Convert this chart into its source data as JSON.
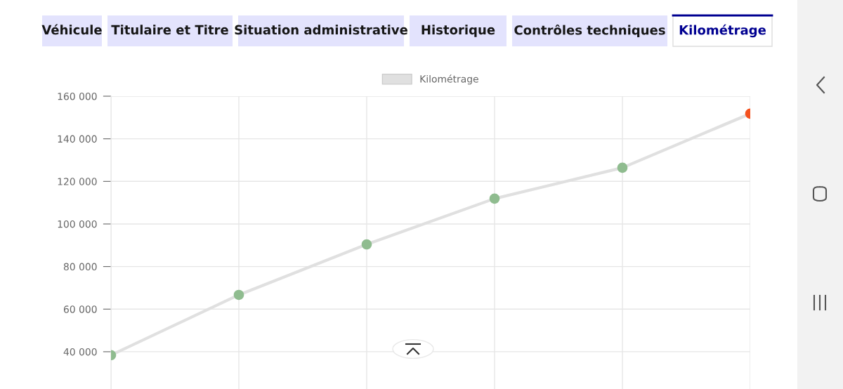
{
  "chart_data": {
    "type": "line",
    "annotations": [
      "Véhicule",
      "Titulaire et Titre",
      "Situation administrative",
      "Historique",
      "Contrôles techniques",
      "Kilométrage"
    ],
    "categories": [
      null,
      null,
      null,
      null,
      null,
      null
    ],
    "series": [
      {
        "name": "Kilométrage",
        "color": "#e0e0e0",
        "colors": [
          "#8fbc8f",
          "#8fbc8f",
          "#8fbc8f",
          "#8fbc8f",
          "#8fbc8f",
          "#f4511e"
        ],
        "values": [
          38400,
          66700,
          90400,
          111900,
          126400,
          151800
        ]
      }
    ],
    "ylim": [
      22500,
      160000
    ],
    "yticks": [
      {
        "value": 40000,
        "label": "40 000"
      },
      {
        "value": 60000,
        "label": "60 000"
      },
      {
        "value": 80000,
        "label": "80 000"
      },
      {
        "value": 100000,
        "label": "100 000"
      },
      {
        "value": 120000,
        "label": "120 000"
      },
      {
        "value": 140000,
        "label": "140 000"
      },
      {
        "value": 160000,
        "label": "160 000"
      }
    ],
    "tick_labels": "y",
    "grid": true,
    "legend": "top",
    "marker": "circle",
    "line_style": "solid"
  }
}
